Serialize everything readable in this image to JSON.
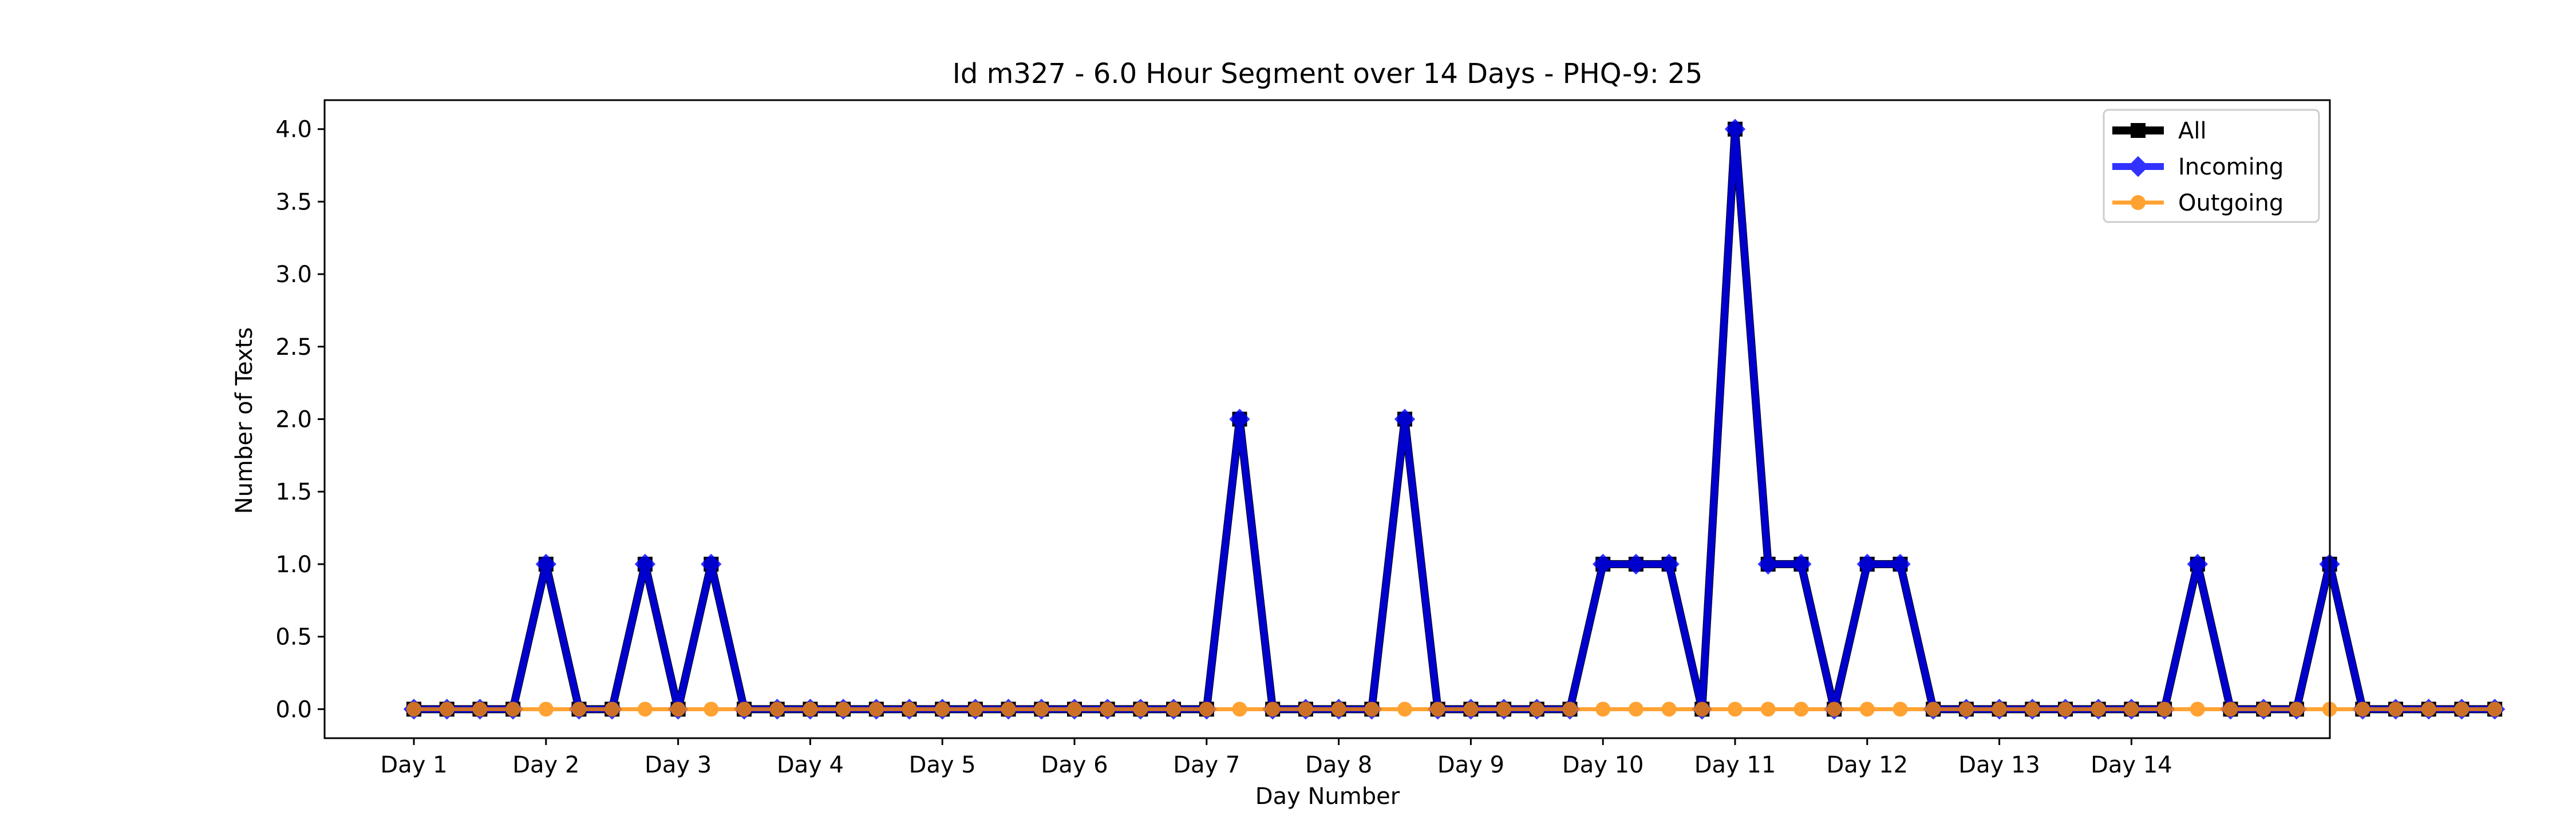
{
  "chart_data": {
    "type": "line",
    "title": "Id m327 - 6.0 Hour Segment over 14 Days - PHQ-9: 25",
    "xlabel": "Day Number",
    "ylabel": "Number of Texts",
    "x_tick_labels": [
      "Day 1",
      "Day 2",
      "Day 3",
      "Day 4",
      "Day 5",
      "Day 6",
      "Day 7",
      "Day 8",
      "Day 9",
      "Day 10",
      "Day 11",
      "Day 12",
      "Day 13",
      "Day 14"
    ],
    "y_tick_labels": [
      "0.0",
      "0.5",
      "1.0",
      "1.5",
      "2.0",
      "2.5",
      "3.0",
      "3.5",
      "4.0"
    ],
    "ylim": [
      -0.2,
      4.2
    ],
    "grid": false,
    "legend_position": "top-right",
    "series": [
      {
        "name": "All",
        "color": "#000000",
        "marker": "square",
        "values": [
          0,
          0,
          0,
          0,
          1,
          0,
          0,
          1,
          0,
          1,
          0,
          0,
          0,
          0,
          0,
          0,
          0,
          0,
          0,
          0,
          0,
          0,
          0,
          0,
          0,
          2,
          0,
          0,
          0,
          0,
          2,
          0,
          0,
          0,
          0,
          0,
          1,
          1,
          1,
          0,
          4,
          1,
          1,
          0,
          1,
          1,
          0,
          0,
          0,
          0,
          0,
          0,
          0,
          0,
          1,
          0,
          0,
          0,
          1,
          0,
          0,
          0,
          0,
          0
        ]
      },
      {
        "name": "Incoming",
        "color": "#0000ff",
        "marker": "diamond",
        "values": [
          0,
          0,
          0,
          0,
          1,
          0,
          0,
          1,
          0,
          1,
          0,
          0,
          0,
          0,
          0,
          0,
          0,
          0,
          0,
          0,
          0,
          0,
          0,
          0,
          0,
          2,
          0,
          0,
          0,
          0,
          2,
          0,
          0,
          0,
          0,
          0,
          1,
          1,
          1,
          0,
          4,
          1,
          1,
          0,
          1,
          1,
          0,
          0,
          0,
          0,
          0,
          0,
          0,
          0,
          1,
          0,
          0,
          0,
          1,
          0,
          0,
          0,
          0,
          0
        ]
      },
      {
        "name": "Outgoing",
        "color": "#ff8c00",
        "marker": "circle",
        "values": [
          0,
          0,
          0,
          0,
          0,
          0,
          0,
          0,
          0,
          0,
          0,
          0,
          0,
          0,
          0,
          0,
          0,
          0,
          0,
          0,
          0,
          0,
          0,
          0,
          0,
          0,
          0,
          0,
          0,
          0,
          0,
          0,
          0,
          0,
          0,
          0,
          0,
          0,
          0,
          0,
          0,
          0,
          0,
          0,
          0,
          0,
          0,
          0,
          0,
          0,
          0,
          0,
          0,
          0,
          0,
          0,
          0,
          0,
          0,
          0,
          0,
          0,
          0,
          0
        ]
      }
    ]
  }
}
